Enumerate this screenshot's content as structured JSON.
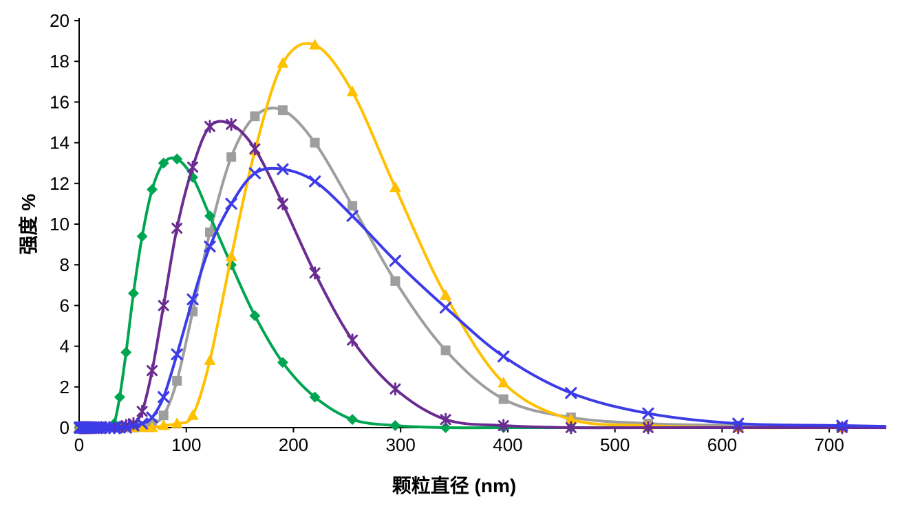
{
  "chart_data": {
    "type": "line",
    "title": "",
    "xlabel": "颗粒直径 (nm)",
    "ylabel": "强度 %",
    "xlim": [
      0,
      750
    ],
    "ylim": [
      0,
      20
    ],
    "x_ticks": [
      0,
      100,
      200,
      300,
      400,
      500,
      600,
      700
    ],
    "y_ticks": [
      0,
      2,
      4,
      6,
      8,
      10,
      12,
      14,
      16,
      18,
      20
    ],
    "grid": false,
    "legend_position": "none",
    "axis_color": "#000000",
    "x": [
      0.4,
      0.46,
      0.54,
      0.62,
      0.72,
      0.83,
      0.96,
      1.12,
      1.29,
      1.5,
      1.74,
      2.01,
      2.33,
      2.7,
      3.12,
      3.62,
      4.19,
      4.85,
      5.61,
      6.5,
      7.53,
      8.72,
      10.1,
      11.7,
      13.5,
      15.7,
      18.2,
      21.0,
      24.4,
      28.2,
      32.7,
      37.8,
      43.8,
      50.7,
      58.8,
      68.1,
      78.8,
      91.3,
      106,
      122,
      142,
      164,
      190,
      220,
      255,
      295,
      342,
      396,
      459,
      531,
      615,
      712,
      825
    ],
    "series": [
      {
        "name": "gray-square-series",
        "marker": "square",
        "color": "#9E9E9E",
        "values": [
          0,
          0,
          0,
          0,
          0,
          0,
          0,
          0,
          0,
          0,
          0,
          0,
          0,
          0,
          0,
          0,
          0,
          0,
          0,
          0,
          0,
          0,
          0,
          0,
          0,
          0,
          0,
          0,
          0,
          0,
          0,
          0,
          0,
          0,
          0.1,
          0.2,
          0.6,
          2.3,
          5.7,
          9.6,
          13.3,
          15.3,
          15.6,
          14.0,
          10.9,
          7.2,
          3.8,
          1.4,
          0.5,
          0.2,
          0.1,
          0,
          0
        ]
      },
      {
        "name": "green-diamond-series",
        "marker": "diamond",
        "color": "#00A551",
        "values": [
          0,
          0,
          0,
          0,
          0,
          0,
          0,
          0,
          0,
          0,
          0,
          0,
          0,
          0,
          0,
          0,
          0,
          0,
          0,
          0,
          0,
          0,
          0,
          0,
          0,
          0,
          0,
          0,
          0,
          0,
          0.2,
          1.5,
          3.7,
          6.6,
          9.4,
          11.7,
          13.0,
          13.2,
          12.3,
          10.4,
          8.0,
          5.5,
          3.2,
          1.5,
          0.4,
          0.1,
          0,
          0,
          0,
          0,
          0,
          0,
          0
        ]
      },
      {
        "name": "gold-triangle-series",
        "marker": "triangle",
        "color": "#FFC000",
        "values": [
          0,
          0,
          0,
          0,
          0,
          0,
          0,
          0,
          0,
          0,
          0,
          0,
          0,
          0,
          0,
          0,
          0,
          0,
          0,
          0,
          0,
          0,
          0,
          0,
          0,
          0,
          0,
          0,
          0,
          0,
          0,
          0,
          0,
          0,
          0,
          0,
          0.1,
          0.2,
          0.6,
          3.3,
          8.4,
          13.6,
          17.9,
          18.8,
          16.5,
          11.8,
          6.5,
          2.2,
          0.4,
          0.1,
          0,
          0,
          0
        ]
      },
      {
        "name": "purple-asterisk-series",
        "marker": "asterisk",
        "color": "#6B2C91",
        "values": [
          0,
          0,
          0,
          0,
          0,
          0,
          0,
          0,
          0,
          0,
          0,
          0,
          0,
          0,
          0,
          0,
          0,
          0,
          0,
          0,
          0,
          0,
          0,
          0,
          0,
          0,
          0,
          0,
          0,
          0,
          0,
          0,
          0.1,
          0.2,
          0.8,
          2.8,
          6.0,
          9.8,
          12.8,
          14.8,
          14.9,
          13.7,
          11.0,
          7.6,
          4.3,
          1.9,
          0.4,
          0.1,
          0,
          0,
          0,
          0,
          0
        ]
      },
      {
        "name": "blue-x-series",
        "marker": "x",
        "color": "#3B3BE8",
        "values": [
          0,
          0,
          0,
          0,
          0,
          0,
          0,
          0,
          0,
          0,
          0,
          0,
          0,
          0,
          0,
          0,
          0,
          0,
          0,
          0,
          0,
          0,
          0,
          0,
          0,
          0,
          0,
          0,
          0,
          0,
          0,
          0,
          0,
          0.1,
          0.2,
          0.5,
          1.5,
          3.6,
          6.3,
          8.9,
          11.0,
          12.5,
          12.7,
          12.1,
          10.4,
          8.2,
          5.9,
          3.5,
          1.7,
          0.7,
          0.2,
          0.1,
          0
        ]
      }
    ]
  }
}
